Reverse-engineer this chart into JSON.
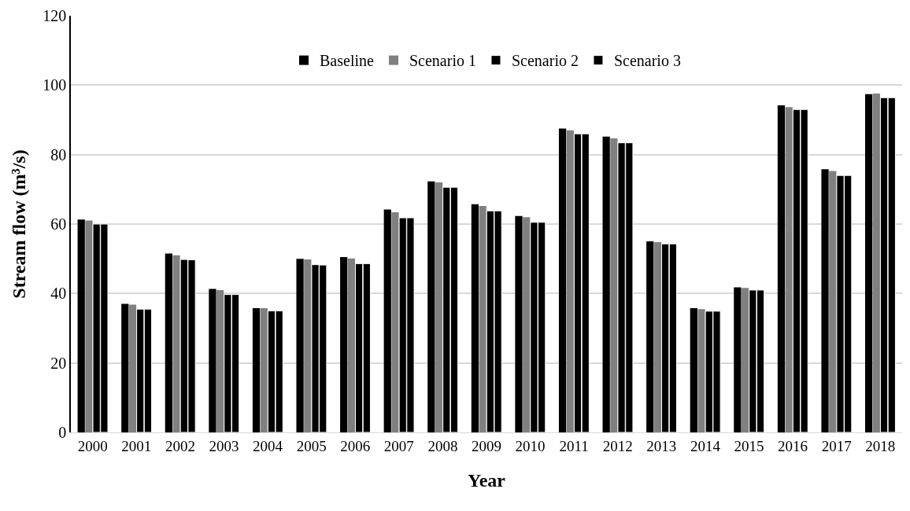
{
  "chart_data": {
    "type": "bar",
    "xlabel": "Year",
    "ylabel": "Stream flow (m³/s)",
    "categories": [
      "2000",
      "2001",
      "2002",
      "2003",
      "2004",
      "2005",
      "2006",
      "2007",
      "2008",
      "2009",
      "2010",
      "2011",
      "2012",
      "2013",
      "2014",
      "2015",
      "2016",
      "2017",
      "2018"
    ],
    "series": [
      {
        "name": "Baseline",
        "color": "#000000",
        "values": [
          61.3,
          37.0,
          51.5,
          41.3,
          35.8,
          50.0,
          50.5,
          64.2,
          72.3,
          65.7,
          62.3,
          87.5,
          85.2,
          55.0,
          35.8,
          41.8,
          94.2,
          75.8,
          97.4
        ]
      },
      {
        "name": "Scenario 1",
        "color": "#808080",
        "values": [
          61.0,
          36.8,
          51.0,
          41.0,
          35.8,
          49.8,
          50.1,
          63.4,
          72.0,
          65.2,
          62.0,
          87.0,
          84.7,
          54.8,
          35.5,
          41.6,
          93.7,
          75.3,
          97.6
        ]
      },
      {
        "name": "Scenario 2",
        "color": "#000000",
        "values": [
          60.0,
          35.5,
          49.8,
          39.7,
          35.0,
          48.3,
          48.6,
          61.8,
          70.6,
          63.8,
          60.5,
          86.0,
          83.4,
          54.3,
          34.9,
          41.0,
          93.0,
          74.0,
          96.4
        ]
      },
      {
        "name": "Scenario 3",
        "color": "#000000",
        "values": [
          60.0,
          35.5,
          49.7,
          39.7,
          35.0,
          48.2,
          48.6,
          61.8,
          70.6,
          63.8,
          60.5,
          86.0,
          83.4,
          54.3,
          34.9,
          41.0,
          93.0,
          74.0,
          96.4
        ]
      }
    ],
    "ylim": [
      0,
      120
    ],
    "yticks": [
      0,
      20,
      40,
      60,
      80,
      100,
      120
    ],
    "grid": "y",
    "legend": "top"
  }
}
